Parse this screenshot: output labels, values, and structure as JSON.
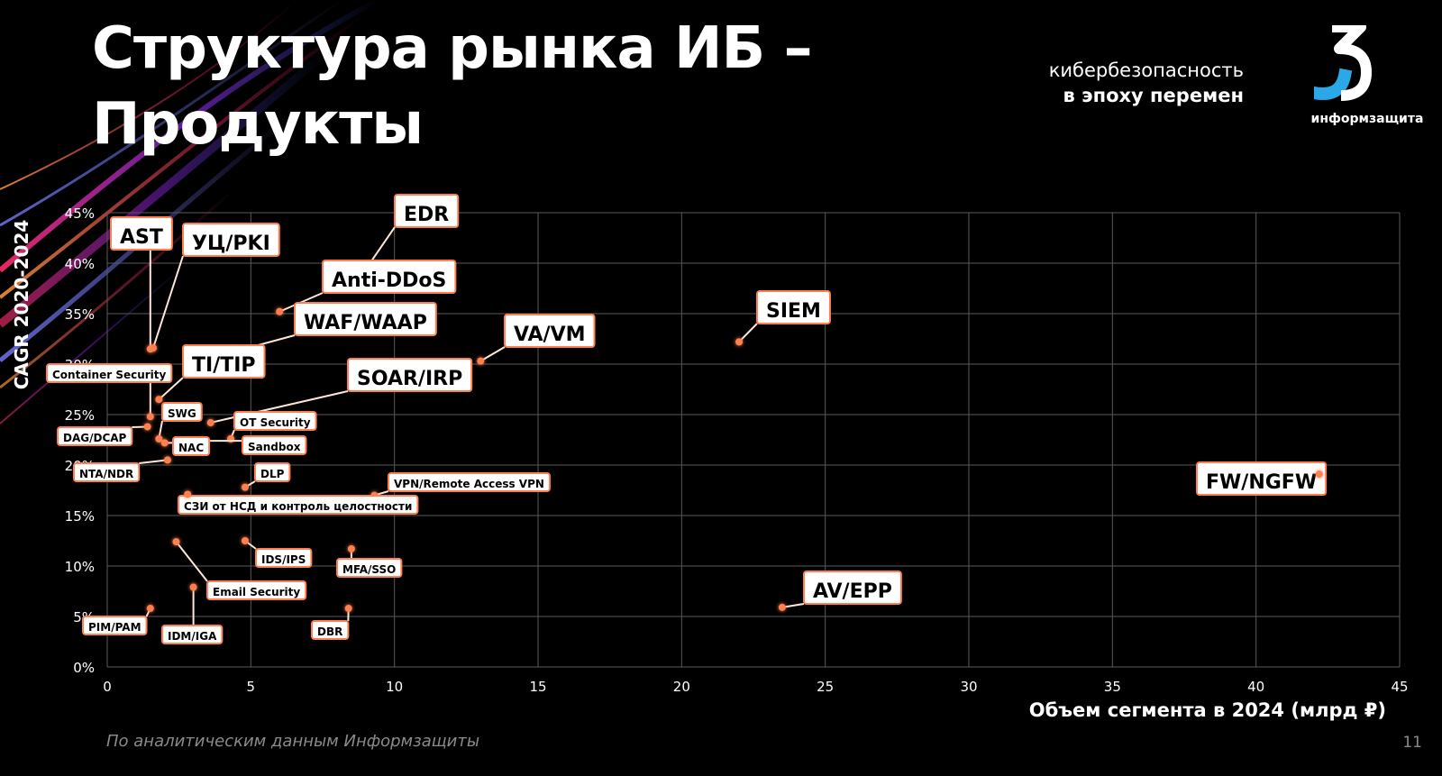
{
  "header": {
    "title_line1": "Структура рынка ИБ –",
    "title_line2": "Продукты",
    "tagline_line1": "кибербезопасность",
    "tagline_line2": "в эпоху перемен",
    "logo_text": "информзащита"
  },
  "footer": {
    "source": "По аналитическим данным Информзащиты",
    "page_number": "11"
  },
  "colors": {
    "background": "#000000",
    "marker": "#ff7f50",
    "label_border": "#ff7f50",
    "grid": "#5a5a5a",
    "logo_blue": "#2aa8e8"
  },
  "chart_data": {
    "type": "scatter",
    "xlabel": "Объем сегмента в 2024 (млрд ₽)",
    "ylabel": "CAGR 2020-2024",
    "xlim": [
      0,
      45
    ],
    "ylim": [
      0,
      45
    ],
    "x_ticks": [
      "0",
      "5",
      "10",
      "15",
      "20",
      "25",
      "30",
      "35",
      "40",
      "45"
    ],
    "y_ticks": [
      "0%",
      "5%",
      "10%",
      "15%",
      "20%",
      "25%",
      "30%",
      "35%",
      "40%",
      "45%"
    ],
    "grid": true,
    "points": [
      {
        "label": "EDR",
        "x": 9.1,
        "y": 39.8,
        "size": "large"
      },
      {
        "label": "AST",
        "x": 1.5,
        "y": 31.5,
        "size": "large"
      },
      {
        "label": "УЦ/PKI",
        "x": 1.6,
        "y": 31.6,
        "size": "large"
      },
      {
        "label": "Anti-DDoS",
        "x": 6.0,
        "y": 35.2,
        "size": "large"
      },
      {
        "label": "WAF/WAAP",
        "x": 4.5,
        "y": 31.3,
        "size": "large"
      },
      {
        "label": "VA/VM",
        "x": 13.0,
        "y": 30.3,
        "size": "large"
      },
      {
        "label": "SIEM",
        "x": 22.0,
        "y": 32.2,
        "size": "large"
      },
      {
        "label": "TI/TIP",
        "x": 1.8,
        "y": 26.5,
        "size": "large"
      },
      {
        "label": "Container Security",
        "x": 1.5,
        "y": 24.8,
        "size": "small"
      },
      {
        "label": "SOAR/IRP",
        "x": 3.6,
        "y": 24.2,
        "size": "large"
      },
      {
        "label": "SWG",
        "x": 1.8,
        "y": 22.6,
        "size": "small"
      },
      {
        "label": "DAG/DCAP",
        "x": 1.4,
        "y": 23.8,
        "size": "small"
      },
      {
        "label": "OT Security",
        "x": 4.3,
        "y": 22.6,
        "size": "small"
      },
      {
        "label": "Sandbox",
        "x": 3.3,
        "y": 22.4,
        "size": "small"
      },
      {
        "label": "NAC",
        "x": 2.0,
        "y": 22.2,
        "size": "small"
      },
      {
        "label": "NTA/NDR",
        "x": 2.1,
        "y": 20.5,
        "size": "small"
      },
      {
        "label": "DLP",
        "x": 4.8,
        "y": 17.8,
        "size": "small"
      },
      {
        "label": "VPN/Remote Access VPN",
        "x": 9.3,
        "y": 17.0,
        "size": "small"
      },
      {
        "label": "СЗИ от НСД и контроль целостности",
        "x": 2.8,
        "y": 17.1,
        "size": "small"
      },
      {
        "label": "FW/NGFW",
        "x": 42.2,
        "y": 19.1,
        "size": "large"
      },
      {
        "label": "Email Security",
        "x": 2.4,
        "y": 12.4,
        "size": "small"
      },
      {
        "label": "IDS/IPS",
        "x": 4.8,
        "y": 12.5,
        "size": "small"
      },
      {
        "label": "MFA/SSO",
        "x": 8.5,
        "y": 11.7,
        "size": "small"
      },
      {
        "label": "PIM/PAM",
        "x": 1.5,
        "y": 5.8,
        "size": "small"
      },
      {
        "label": "IDM/IGA",
        "x": 3.0,
        "y": 7.9,
        "size": "small"
      },
      {
        "label": "DBR",
        "x": 8.4,
        "y": 5.8,
        "size": "small"
      },
      {
        "label": "AV/EPP",
        "x": 23.5,
        "y": 5.9,
        "size": "large"
      }
    ]
  }
}
